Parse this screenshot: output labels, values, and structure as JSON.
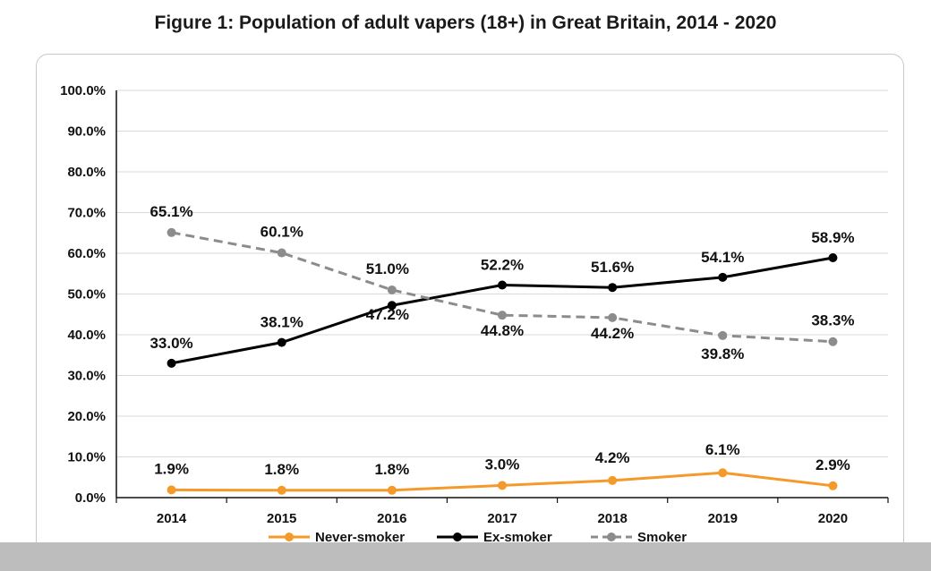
{
  "title": "Figure 1: Population of adult vapers (18+) in Great Britain, 2014 - 2020",
  "chart_data": {
    "type": "line",
    "title": "Figure 1: Population of adult vapers (18+) in Great Britain, 2014 - 2020",
    "xlabel": "",
    "ylabel": "",
    "ylim": [
      0,
      100
    ],
    "y_ticks": [
      "0.0%",
      "10.0%",
      "20.0%",
      "30.0%",
      "40.0%",
      "50.0%",
      "60.0%",
      "70.0%",
      "80.0%",
      "90.0%",
      "100.0%"
    ],
    "categories": [
      "2014",
      "2015",
      "2016",
      "2017",
      "2018",
      "2019",
      "2020"
    ],
    "grid": true,
    "legend_position": "bottom",
    "series": [
      {
        "name": "Never-smoker",
        "color": "#f39a2b",
        "dash": "solid",
        "values": [
          1.9,
          1.8,
          1.8,
          3.0,
          4.2,
          6.1,
          2.9
        ],
        "labels": [
          "1.9%",
          "1.8%",
          "1.8%",
          "3.0%",
          "4.2%",
          "6.1%",
          "2.9%"
        ]
      },
      {
        "name": "Ex-smoker",
        "color": "#000000",
        "dash": "solid",
        "values": [
          33.0,
          38.1,
          47.2,
          52.2,
          51.6,
          54.1,
          58.9
        ],
        "labels": [
          "33.0%",
          "38.1%",
          "47.2%",
          "52.2%",
          "51.6%",
          "54.1%",
          "58.9%"
        ]
      },
      {
        "name": "Smoker",
        "color": "#8c8c8c",
        "dash": "dashed",
        "values": [
          65.1,
          60.1,
          51.0,
          44.8,
          44.2,
          39.8,
          38.3
        ],
        "labels": [
          "65.1%",
          "60.1%",
          "51.0%",
          "44.8%",
          "44.2%",
          "39.8%",
          "38.3%"
        ]
      }
    ]
  }
}
